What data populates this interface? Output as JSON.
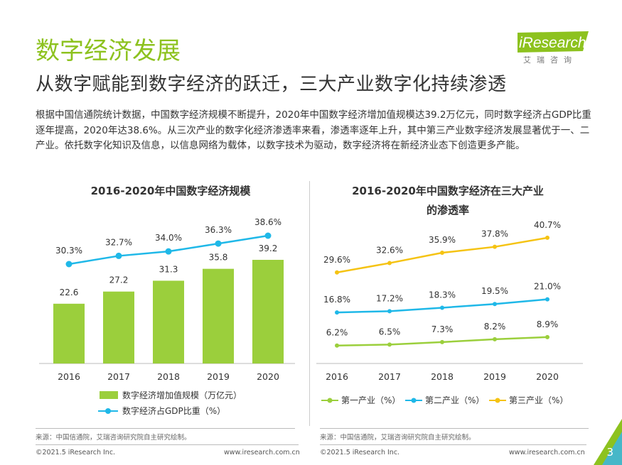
{
  "header": {
    "title": "数字经济发展",
    "subtitle": "从数字赋能到数字经济的跃迁，三大产业数字化持续渗透",
    "paragraph": "根据中国信通院统计数据，中国数字经济规模不断提升，2020年中国数字经济增加值规模达39.2万亿元，同时数字经济占GDP比重逐年提高，2020年达38.6%。从三次产业的数字化经济渗透率来看，渗透率逐年上升，其中第三产业数字经济发展显著优于一、二产业。依托数字化知识及信息，以信息网络为载体，以数字技术为驱动，数字经济将在新经济业态下创造更多产能。"
  },
  "logo": {
    "text": "iResearch",
    "sub": "艾瑞咨询"
  },
  "colors": {
    "green": "#8dc21f",
    "blue": "#1fb8e8",
    "yellow": "#f5c313",
    "lightgreen": "#9bcf3c"
  },
  "chart_data": [
    {
      "type": "bar",
      "title": "2016-2020年中国数字经济规模",
      "categories": [
        "2016",
        "2017",
        "2018",
        "2019",
        "2020"
      ],
      "series": [
        {
          "name": "数字经济增加值规模（万亿元）",
          "type": "bar",
          "values": [
            22.6,
            27.2,
            31.3,
            35.8,
            39.2
          ],
          "labels": [
            "22.6",
            "27.2",
            "31.3",
            "35.8",
            "39.2"
          ]
        },
        {
          "name": "数字经济占GDP比重（%）",
          "type": "line",
          "values": [
            30.3,
            32.7,
            34.0,
            36.3,
            38.6
          ],
          "labels": [
            "30.3%",
            "32.7%",
            "34.0%",
            "36.3%",
            "38.6%"
          ]
        }
      ],
      "legend": "bottom"
    },
    {
      "type": "line",
      "title": "2016-2020年中国数字经济在三大产业的渗透率",
      "categories": [
        "2016",
        "2017",
        "2018",
        "2019",
        "2020"
      ],
      "series": [
        {
          "name": "第一产业（%）",
          "values": [
            6.2,
            6.5,
            7.3,
            8.2,
            8.9
          ],
          "labels": [
            "6.2%",
            "6.5%",
            "7.3%",
            "8.2%",
            "8.9%"
          ]
        },
        {
          "name": "第二产业（%）",
          "values": [
            16.8,
            17.2,
            18.3,
            19.5,
            21.0
          ],
          "labels": [
            "16.8%",
            "17.2%",
            "18.3%",
            "19.5%",
            "21.0%"
          ]
        },
        {
          "name": "第三产业（%）",
          "values": [
            29.6,
            32.6,
            35.9,
            37.8,
            40.7
          ],
          "labels": [
            "29.6%",
            "32.6%",
            "35.9%",
            "37.8%",
            "40.7%"
          ]
        }
      ],
      "legend": "bottom"
    }
  ],
  "chart_titles": {
    "left": "2016-2020年中国数字经济规模",
    "right_line1": "2016-2020年中国数字经济在三大产业",
    "right_line2": "的渗透率"
  },
  "sources": {
    "left": "来源：中国信通院，艾瑞咨询研究院自主研究绘制。",
    "right": "来源：中国信通院，艾瑞咨询研究院自主研究绘制。"
  },
  "footer": {
    "copyright": "©2021.5 iResearch Inc.",
    "url": "www.iresearch.com.cn",
    "page": "3"
  }
}
